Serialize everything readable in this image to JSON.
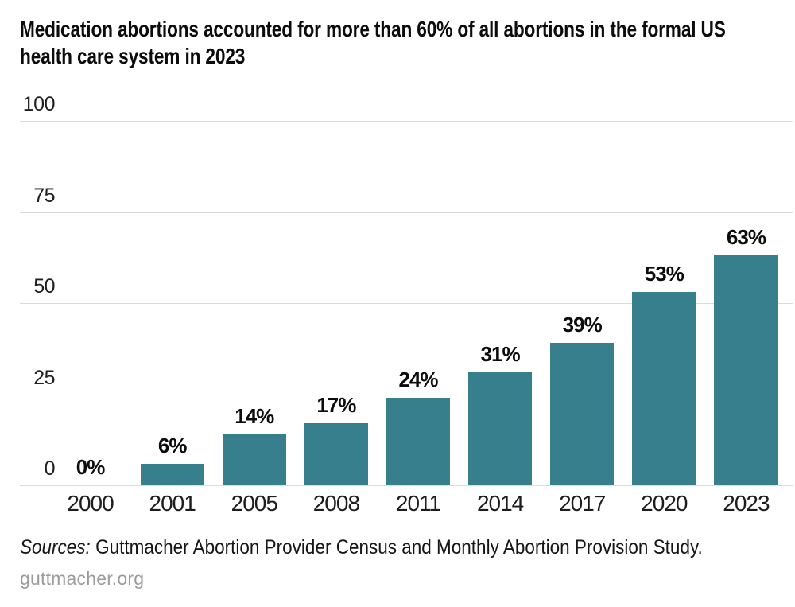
{
  "title": "Medication abortions accounted for more than 60% of all abortions in the formal US health care system in 2023",
  "chart_data": {
    "type": "bar",
    "categories": [
      "2000",
      "2001",
      "2005",
      "2008",
      "2011",
      "2014",
      "2017",
      "2020",
      "2023"
    ],
    "values": [
      0,
      6,
      14,
      17,
      24,
      31,
      39,
      53,
      63
    ],
    "value_labels": [
      "0%",
      "6%",
      "14%",
      "17%",
      "24%",
      "31%",
      "39%",
      "53%",
      "63%"
    ],
    "title": "Medication abortions accounted for more than 60% of all abortions in the formal US health care system in 2023",
    "xlabel": "",
    "ylabel": "",
    "ylim": [
      0,
      100
    ],
    "yticks": [
      "100",
      "75",
      "50",
      "25",
      "0"
    ],
    "grid": true,
    "legend_position": "none",
    "bar_color": "#377F8C",
    "gridline_color": "#DBDBDB",
    "label_color": "#0c0c0c"
  },
  "sources": {
    "label": "Sources:",
    "text": "Guttmacher Abortion Provider Census and Monthly Abortion Provision Study."
  },
  "footer": {
    "site": "guttmacher.org"
  }
}
